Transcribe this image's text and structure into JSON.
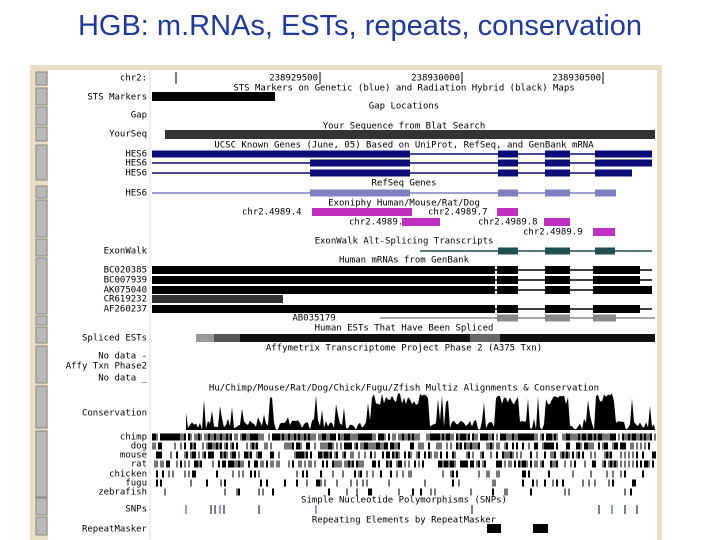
{
  "title": "HGB: m.RNAs, ESTs, repeats, conservation",
  "browser": {
    "ruler": {
      "chrom": "chr2:",
      "positions": [
        238929500,
        238930000,
        238930500
      ]
    },
    "left_labels": [
      "STS Markers",
      "Gap",
      "YourSeq",
      "HES6",
      "HES6",
      "HES6",
      "HES6",
      "ExonWalk",
      "BC020385",
      "BC007939",
      "AK075040",
      "CR619232",
      "AF260237",
      "Spliced ESTs",
      "No data -",
      "Affy Txn Phase2",
      "No data _",
      "Conservation",
      "chimp",
      "dog",
      "mouse",
      "rat",
      "chicken",
      "fugu",
      "zebrafish",
      "SNPs",
      "RepeatMasker"
    ],
    "track_titles": [
      "STS Markers on Genetic (blue) and Radiation Hybrid (black) Maps",
      "Gap Locations",
      "Your Sequence from Blat Search",
      "UCSC Known Genes (June, 05) Based on UniProt, RefSeq, and GenBank mRNA",
      "RefSeq Genes",
      "Exoniphy Human/Mouse/Rat/Dog",
      "ExonWalk Alt-Splicing Transcripts",
      "Human mRNAs from GenBank",
      "Human ESTs That Have Been Spliced",
      "Affymetrix Transcriptome Project Phase 2 (A375 Txn)",
      "Hu/Chimp/Mouse/Rat/Dog/Chick/Fugu/Zfish Multiz Alignments & Conservation",
      "Simple Nucleotide Polymorphisms (SNPs)",
      "Repeating Elements by RepeatMasker"
    ],
    "exon_labels": [
      "chr2.4989.4",
      "chr2.4989.7",
      "chr2.4989.5",
      "chr2.4989.8",
      "chr2.4989.9"
    ],
    "mrna_label": "AB035179"
  }
}
